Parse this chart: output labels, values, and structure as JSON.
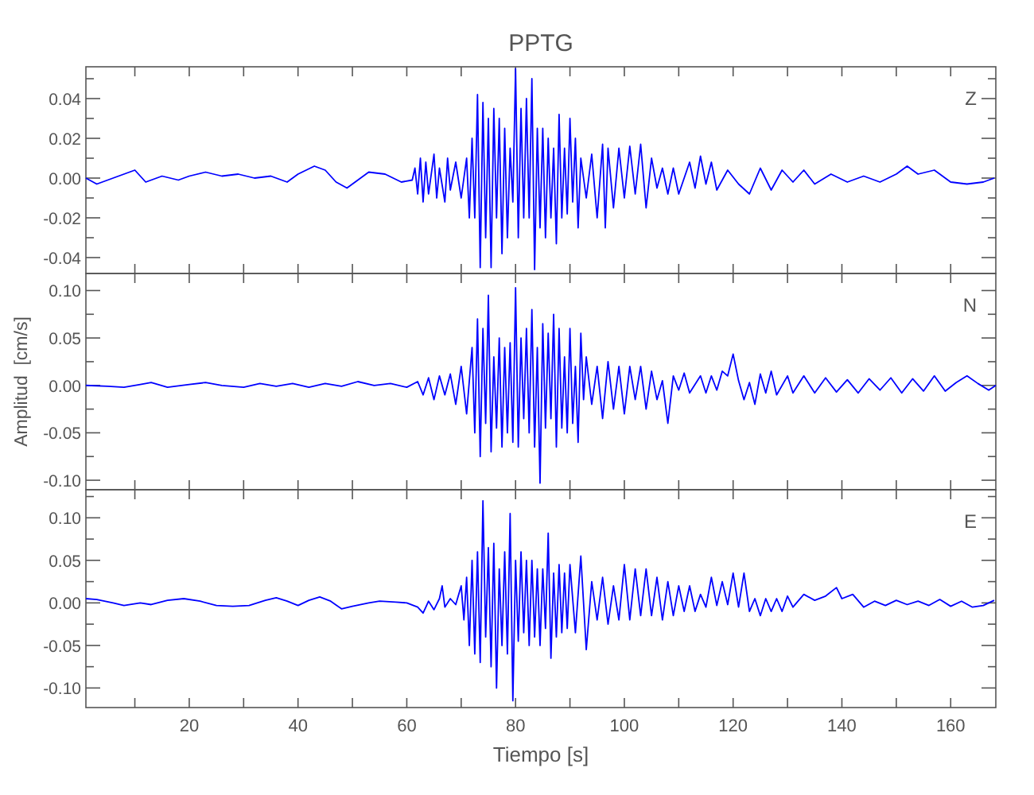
{
  "chart_data": [
    {
      "type": "line",
      "title": "PPTG",
      "annotations": [
        "Z"
      ],
      "tick_labels": "y",
      "xlim": [
        1,
        168.3
      ],
      "ylim": [
        -0.048,
        0.056
      ],
      "xticks": [
        {
          "value": 10,
          "label": null
        },
        {
          "value": 20,
          "label": null
        },
        {
          "value": 30,
          "label": null
        },
        {
          "value": 40,
          "label": null
        },
        {
          "value": 50,
          "label": null
        },
        {
          "value": 60,
          "label": null
        },
        {
          "value": 70,
          "label": null
        },
        {
          "value": 80,
          "label": null
        },
        {
          "value": 90,
          "label": null
        },
        {
          "value": 100,
          "label": null
        },
        {
          "value": 110,
          "label": null
        },
        {
          "value": 120,
          "label": null
        },
        {
          "value": 130,
          "label": null
        },
        {
          "value": 140,
          "label": null
        },
        {
          "value": 150,
          "label": null
        },
        {
          "value": 160,
          "label": null
        }
      ],
      "yticks": [
        {
          "value": -0.04,
          "label": "-0.04"
        },
        {
          "value": -0.03,
          "label": null
        },
        {
          "value": -0.02,
          "label": "-0.02"
        },
        {
          "value": -0.01,
          "label": null
        },
        {
          "value": 0,
          "label": "0.00"
        },
        {
          "value": 0.01,
          "label": null
        },
        {
          "value": 0.02,
          "label": "0.02"
        },
        {
          "value": 0.03,
          "label": null
        },
        {
          "value": 0.04,
          "label": "0.04"
        },
        {
          "value": 0.05,
          "label": null
        }
      ],
      "series": [
        {
          "color": "#0000ff",
          "x": [
            1,
            3,
            5,
            8,
            10,
            12,
            15,
            18,
            20,
            23,
            26,
            29,
            32,
            35,
            38,
            40,
            43,
            45,
            47,
            49,
            51,
            53,
            56,
            59,
            61,
            61.5,
            62,
            62.5,
            63,
            63.5,
            64,
            65,
            65.5,
            66,
            67,
            67.5,
            68,
            69,
            70,
            71,
            71.5,
            72,
            72.5,
            73,
            73.5,
            74,
            74.5,
            75,
            75.5,
            76,
            76.5,
            77,
            77.5,
            78,
            78.5,
            79,
            79.5,
            80,
            80.5,
            81,
            81.5,
            82,
            82.5,
            83,
            83.5,
            84,
            84.5,
            85,
            85.5,
            86,
            86.5,
            87,
            87.5,
            88,
            88.5,
            89,
            89.5,
            90,
            90.5,
            91,
            91.5,
            92,
            93,
            94,
            95,
            96,
            96.5,
            97,
            98,
            99,
            100,
            101,
            102,
            103,
            104,
            105,
            106,
            107,
            108,
            109,
            110,
            112,
            113,
            114,
            115,
            116,
            117,
            119,
            121,
            123,
            125,
            127,
            129,
            131,
            133,
            135,
            138,
            141,
            144,
            147,
            150,
            152,
            154,
            157,
            160,
            163,
            166,
            168
          ],
          "values": [
            0,
            -0.003,
            -0.001,
            0.002,
            0.004,
            -0.002,
            0.001,
            -0.001,
            0.001,
            0.003,
            0.001,
            0.002,
            0,
            0.001,
            -0.002,
            0.002,
            0.006,
            0.004,
            -0.002,
            -0.005,
            -0.001,
            0.003,
            0.002,
            -0.002,
            -0.001,
            0.005,
            -0.008,
            0.01,
            -0.012,
            0.008,
            -0.008,
            0.012,
            -0.01,
            0.005,
            -0.012,
            0.01,
            -0.006,
            0.008,
            -0.01,
            0.01,
            -0.02,
            0.02,
            -0.02,
            0.042,
            -0.045,
            0.038,
            -0.03,
            0.03,
            -0.045,
            0.035,
            -0.02,
            0.03,
            -0.038,
            0.025,
            -0.03,
            0.015,
            -0.012,
            0.055,
            -0.03,
            0.035,
            -0.02,
            0.04,
            -0.02,
            0.05,
            -0.046,
            0.025,
            -0.025,
            0.025,
            -0.03,
            0.02,
            -0.02,
            0.015,
            -0.033,
            0.032,
            -0.02,
            0.015,
            -0.018,
            0.03,
            -0.012,
            0.02,
            -0.025,
            0.01,
            -0.01,
            0.012,
            -0.02,
            0.017,
            -0.025,
            0.015,
            -0.015,
            0.015,
            -0.01,
            0.016,
            -0.008,
            0.017,
            -0.015,
            0.01,
            -0.005,
            0.005,
            -0.008,
            0.005,
            -0.008,
            0.008,
            -0.005,
            0.011,
            -0.003,
            0.008,
            -0.006,
            0.004,
            -0.003,
            -0.008,
            0.005,
            -0.006,
            0.004,
            -0.002,
            0.004,
            -0.003,
            0.002,
            -0.002,
            0.001,
            -0.002,
            0.002,
            0.006,
            0.002,
            0.004,
            -0.002,
            -0.003,
            -0.002,
            0
          ]
        }
      ]
    },
    {
      "type": "line",
      "ylabel": "Amplitud  [cm/s]",
      "annotations": [
        "N"
      ],
      "tick_labels": "y",
      "xlim": [
        1,
        168.3
      ],
      "ylim": [
        -0.11,
        0.118
      ],
      "xticks": [
        {
          "value": 10,
          "label": null
        },
        {
          "value": 20,
          "label": null
        },
        {
          "value": 30,
          "label": null
        },
        {
          "value": 40,
          "label": null
        },
        {
          "value": 50,
          "label": null
        },
        {
          "value": 60,
          "label": null
        },
        {
          "value": 70,
          "label": null
        },
        {
          "value": 80,
          "label": null
        },
        {
          "value": 90,
          "label": null
        },
        {
          "value": 100,
          "label": null
        },
        {
          "value": 110,
          "label": null
        },
        {
          "value": 120,
          "label": null
        },
        {
          "value": 130,
          "label": null
        },
        {
          "value": 140,
          "label": null
        },
        {
          "value": 150,
          "label": null
        },
        {
          "value": 160,
          "label": null
        }
      ],
      "yticks": [
        {
          "value": -0.1,
          "label": "-0.10"
        },
        {
          "value": -0.075,
          "label": null
        },
        {
          "value": -0.05,
          "label": "-0.05"
        },
        {
          "value": -0.025,
          "label": null
        },
        {
          "value": 0,
          "label": "0.00"
        },
        {
          "value": 0.025,
          "label": null
        },
        {
          "value": 0.05,
          "label": "0.05"
        },
        {
          "value": 0.075,
          "label": null
        },
        {
          "value": 0.1,
          "label": "0.10"
        }
      ],
      "series": [
        {
          "color": "#0000ff",
          "x": [
            1,
            5,
            8,
            11,
            13,
            16,
            20,
            23,
            26,
            30,
            33,
            36,
            39,
            42,
            45,
            48,
            51,
            54,
            57,
            60,
            62,
            63,
            64,
            65,
            66,
            67,
            68,
            69,
            70,
            71,
            72,
            72.5,
            73,
            73.5,
            74,
            74.5,
            75,
            75.5,
            76,
            76.5,
            77,
            77.5,
            78,
            78.5,
            79,
            79.5,
            80,
            80.5,
            81,
            81.5,
            82,
            82.5,
            83,
            83.5,
            84,
            84.5,
            85,
            85.5,
            86,
            86.5,
            87,
            87.5,
            88,
            88.5,
            89,
            89.5,
            90,
            90.5,
            91,
            91.5,
            92,
            92.5,
            93,
            94,
            95,
            96,
            97,
            98,
            99,
            100,
            101,
            102,
            103,
            104,
            105,
            106,
            107,
            108,
            109,
            110,
            111,
            112,
            114,
            115,
            116,
            117,
            118,
            119,
            120,
            121,
            122,
            123,
            124,
            125,
            126,
            127,
            128,
            130,
            131,
            133,
            135,
            137,
            139,
            141,
            143,
            145,
            147,
            149,
            151,
            153,
            155,
            157,
            159,
            161,
            163,
            165,
            167,
            168.3
          ],
          "values": [
            0,
            -0.001,
            -0.002,
            0.001,
            0.003,
            -0.002,
            0.001,
            0.003,
            0,
            -0.002,
            0.002,
            -0.001,
            0.002,
            -0.002,
            0.002,
            -0.001,
            0.004,
            0,
            0.002,
            -0.002,
            0.004,
            -0.01,
            0.008,
            -0.015,
            0.01,
            -0.01,
            0.012,
            -0.02,
            0.02,
            -0.03,
            0.04,
            -0.05,
            0.07,
            -0.075,
            0.06,
            -0.04,
            0.095,
            -0.07,
            0.03,
            -0.045,
            0.05,
            -0.065,
            0.04,
            -0.05,
            0.045,
            -0.06,
            0.103,
            -0.065,
            0.05,
            -0.035,
            0.06,
            -0.05,
            0.08,
            -0.065,
            0.04,
            -0.103,
            0.065,
            -0.045,
            0.055,
            -0.035,
            0.075,
            -0.065,
            0.06,
            -0.045,
            0.03,
            -0.05,
            0.06,
            -0.04,
            0.02,
            -0.06,
            0.055,
            -0.015,
            0.03,
            -0.02,
            0.02,
            -0.035,
            0.025,
            -0.025,
            0.02,
            -0.03,
            0.02,
            -0.015,
            0.02,
            -0.025,
            0.015,
            -0.015,
            0.005,
            -0.04,
            0.01,
            -0.005,
            0.013,
            -0.008,
            0.01,
            -0.008,
            0.01,
            -0.005,
            0.015,
            0.01,
            0.033,
            0.005,
            -0.015,
            0.003,
            -0.02,
            0.012,
            -0.008,
            0.015,
            -0.01,
            0.01,
            -0.008,
            0.01,
            -0.008,
            0.008,
            -0.007,
            0.006,
            -0.008,
            0.007,
            -0.005,
            0.008,
            -0.008,
            0.007,
            -0.006,
            0.01,
            -0.006,
            0.003,
            0.01,
            0.002,
            -0.005,
            0
          ]
        }
      ]
    },
    {
      "type": "line",
      "xlabel": "Tiempo  [s]",
      "annotations": [
        "E"
      ],
      "xlim": [
        1,
        168.3
      ],
      "ylim": [
        -0.123,
        0.133
      ],
      "xticks": [
        {
          "value": 10,
          "label": null
        },
        20,
        {
          "value": 30,
          "label": null
        },
        40,
        {
          "value": 50,
          "label": null
        },
        60,
        {
          "value": 70,
          "label": null
        },
        80,
        {
          "value": 90,
          "label": null
        },
        100,
        {
          "value": 110,
          "label": null
        },
        120,
        {
          "value": 130,
          "label": null
        },
        140,
        {
          "value": 150,
          "label": null
        },
        160
      ],
      "yticks": [
        {
          "value": -0.1,
          "label": "-0.10"
        },
        {
          "value": -0.075,
          "label": null
        },
        {
          "value": -0.05,
          "label": "-0.05"
        },
        {
          "value": -0.025,
          "label": null
        },
        {
          "value": 0,
          "label": "0.00"
        },
        {
          "value": 0.025,
          "label": null
        },
        {
          "value": 0.05,
          "label": "0.05"
        },
        {
          "value": 0.075,
          "label": null
        },
        {
          "value": 0.1,
          "label": "0.10"
        },
        {
          "value": 0.125,
          "label": null
        }
      ],
      "series": [
        {
          "color": "#0000ff",
          "x": [
            1,
            3,
            6,
            8,
            11,
            13,
            16,
            19,
            22,
            25,
            28,
            31,
            34,
            36,
            38,
            40,
            42,
            44,
            46,
            48,
            50,
            53,
            55,
            58,
            60,
            62,
            63,
            64,
            65,
            66,
            66.5,
            67,
            68,
            69,
            70,
            70.5,
            71,
            71.5,
            72,
            72.5,
            73,
            73.5,
            74,
            74.5,
            75,
            75.5,
            76,
            76.5,
            77,
            77.5,
            78,
            78.5,
            79,
            79.5,
            80,
            80.5,
            81,
            81.5,
            82,
            82.5,
            83,
            83.5,
            84,
            84.5,
            85,
            85.5,
            86,
            86.5,
            87,
            87.5,
            88,
            88.5,
            89,
            89.5,
            90,
            91,
            92,
            93,
            94,
            95,
            96,
            97,
            98,
            99,
            100,
            101,
            102,
            103,
            104,
            105,
            106,
            107,
            108,
            109,
            110,
            111,
            112,
            113,
            114,
            115,
            116,
            117,
            118,
            119,
            120,
            121,
            122,
            123,
            124,
            125,
            126,
            127,
            128,
            129,
            130,
            131,
            133,
            135,
            137,
            139,
            140,
            142,
            144,
            146,
            148,
            150,
            152,
            154,
            156,
            158,
            160,
            162,
            164,
            166,
            168
          ],
          "values": [
            0.005,
            0.004,
            0,
            -0.003,
            0,
            -0.002,
            0.003,
            0.005,
            0.002,
            -0.003,
            -0.004,
            -0.003,
            0.003,
            0.006,
            0.002,
            -0.003,
            0.003,
            0.007,
            0.002,
            -0.007,
            -0.004,
            0,
            0.002,
            0.001,
            0,
            -0.005,
            -0.012,
            0.002,
            -0.008,
            0.005,
            0.02,
            -0.005,
            0.005,
            -0.002,
            0.02,
            -0.02,
            0.03,
            -0.05,
            0.05,
            -0.06,
            0.06,
            -0.07,
            0.12,
            -0.04,
            0.065,
            -0.075,
            0.07,
            -0.1,
            0.04,
            -0.05,
            0.06,
            -0.06,
            0.105,
            -0.115,
            0.05,
            -0.045,
            0.06,
            -0.035,
            0.05,
            -0.05,
            0.05,
            -0.04,
            0.04,
            -0.05,
            0.04,
            -0.03,
            0.082,
            -0.065,
            0.035,
            -0.04,
            0.045,
            -0.035,
            0.035,
            -0.03,
            0.045,
            -0.035,
            0.055,
            -0.055,
            0.025,
            -0.02,
            0.03,
            -0.025,
            0.02,
            -0.02,
            0.045,
            -0.02,
            0.04,
            -0.015,
            0.04,
            -0.015,
            0.03,
            -0.02,
            0.025,
            -0.015,
            0.02,
            -0.01,
            0.02,
            -0.01,
            0.01,
            -0.005,
            0.03,
            -0.003,
            0.025,
            -0.002,
            0.035,
            -0.005,
            0.035,
            -0.01,
            0.005,
            -0.015,
            0.005,
            -0.01,
            0.005,
            -0.01,
            0.008,
            -0.005,
            0.01,
            0.003,
            0.008,
            0.018,
            0.005,
            0.01,
            -0.005,
            0.002,
            -0.003,
            0.003,
            -0.002,
            0.002,
            -0.003,
            0.004,
            -0.004,
            0.002,
            -0.005,
            -0.003,
            0.003
          ]
        }
      ]
    }
  ]
}
